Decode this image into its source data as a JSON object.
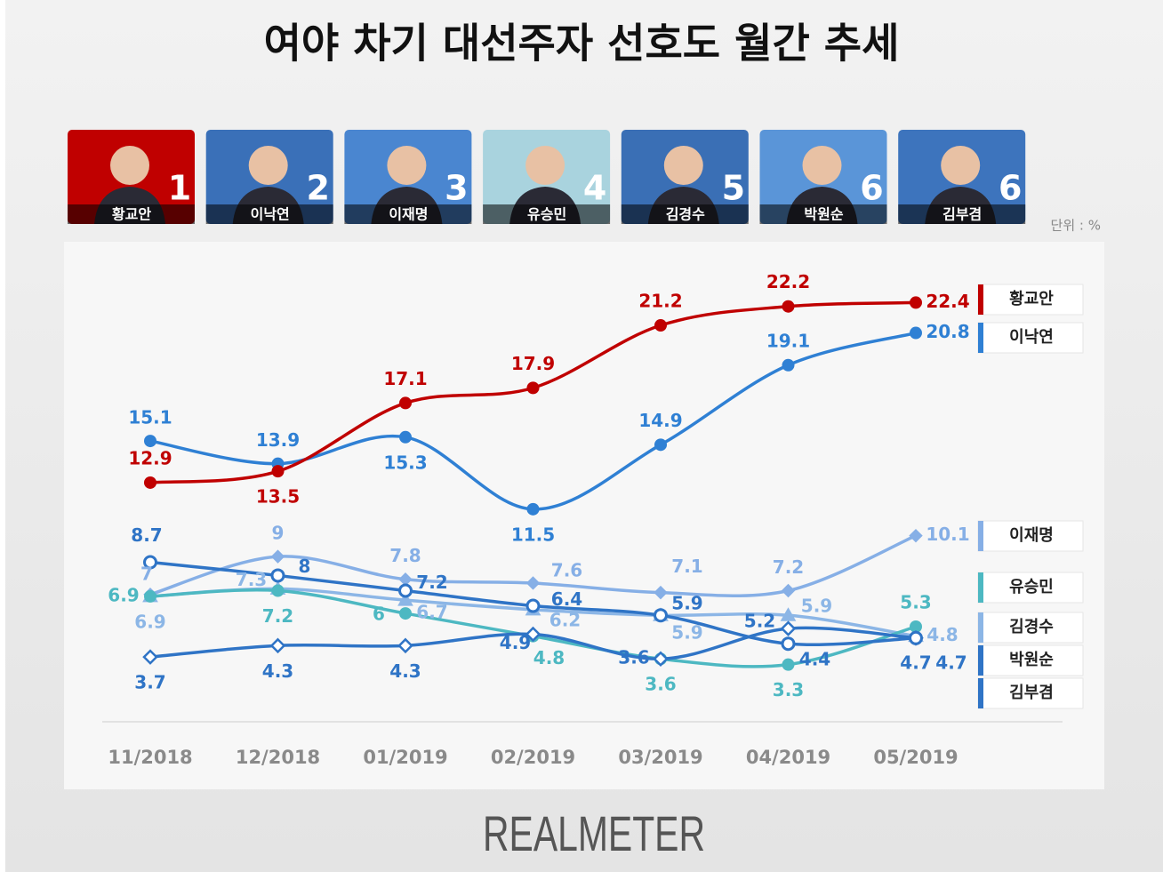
{
  "chart_data": {
    "type": "line",
    "title": "여야 차기 대선주자 선호도 월간 추세",
    "unit_label": "단위 : %",
    "source": "REALMETER",
    "candidates": [
      {
        "name": "황교안",
        "rank": 1,
        "color": "#c00000"
      },
      {
        "name": "이낙연",
        "rank": 2,
        "color": "#3a70b8"
      },
      {
        "name": "이재명",
        "rank": 3,
        "color": "#4a86d0"
      },
      {
        "name": "유승민",
        "rank": 4,
        "color": "#a9d3de"
      },
      {
        "name": "김경수",
        "rank": 5,
        "color": "#3a6fb5"
      },
      {
        "name": "박원순",
        "rank": 6,
        "color": "#5a95d8"
      },
      {
        "name": "김부겸",
        "rank": 6,
        "color": "#3d74bd"
      }
    ],
    "categories": [
      "11/2018",
      "12/2018",
      "01/2019",
      "02/2019",
      "03/2019",
      "04/2019",
      "05/2019"
    ],
    "ylim": [
      0,
      25
    ],
    "series": [
      {
        "name": "황교안",
        "color": "#c00000",
        "marker": "circle",
        "values": [
          12.9,
          13.5,
          17.1,
          17.9,
          21.2,
          22.2,
          22.4
        ]
      },
      {
        "name": "이낙연",
        "color": "#2f80d4",
        "marker": "circle",
        "values": [
          15.1,
          13.9,
          15.3,
          11.5,
          14.9,
          19.1,
          20.8
        ]
      },
      {
        "name": "이재명",
        "color": "#86afe6",
        "marker": "diamond",
        "values": [
          7.0,
          9.0,
          7.8,
          7.6,
          7.1,
          7.2,
          10.1
        ]
      },
      {
        "name": "유승민",
        "color": "#4db8c2",
        "marker": "circle",
        "values": [
          6.9,
          7.2,
          6.0,
          4.8,
          3.6,
          3.3,
          5.3
        ]
      },
      {
        "name": "김경수",
        "color": "#8cb6e6",
        "marker": "triangle",
        "values": [
          6.9,
          7.3,
          6.7,
          6.2,
          5.9,
          5.9,
          4.8
        ]
      },
      {
        "name": "박원순",
        "color": "#2f74c6",
        "marker": "circle-open",
        "values": [
          8.7,
          8.0,
          7.2,
          6.4,
          5.9,
          4.4,
          4.7
        ]
      },
      {
        "name": "김부겸",
        "color": "#2f74c6",
        "marker": "diamond-open",
        "values": [
          3.7,
          4.3,
          4.3,
          4.9,
          3.6,
          5.2,
          4.7
        ]
      }
    ]
  }
}
